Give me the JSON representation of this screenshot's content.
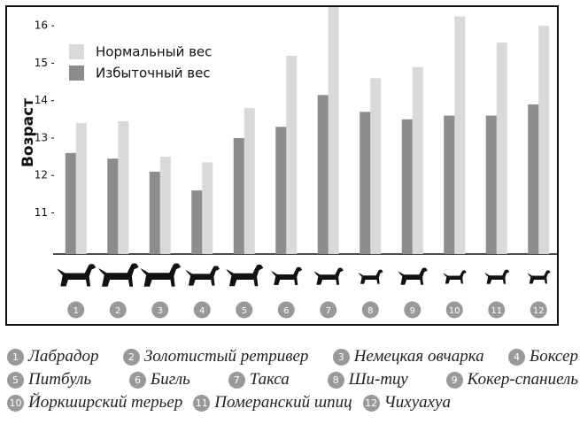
{
  "chart_data": {
    "type": "bar",
    "y_label": "Возраст",
    "categories": [
      "1",
      "2",
      "3",
      "4",
      "5",
      "6",
      "7",
      "8",
      "9",
      "10",
      "11",
      "12"
    ],
    "breeds": [
      "Лабрадор",
      "Золотистый ретривер",
      "Немецкая овчарка",
      "Боксер",
      "Питбуль",
      "Бигль",
      "Такса",
      "Ши-тцу",
      "Кокер-спаниель",
      "Йоркширский терьер",
      "Померанский шпиц",
      "Чихуахуа"
    ],
    "series": [
      {
        "name": "Нормальный вес",
        "color": "#d9d9d9",
        "values": [
          13.4,
          13.45,
          12.5,
          12.35,
          13.8,
          15.2,
          16.5,
          14.6,
          14.9,
          16.25,
          15.55,
          16.0
        ]
      },
      {
        "name": "Избыточный вес",
        "color": "#8c8c8c",
        "values": [
          12.6,
          12.45,
          12.1,
          11.6,
          13.0,
          13.3,
          14.15,
          13.7,
          13.5,
          13.6,
          13.6,
          13.9
        ]
      }
    ],
    "ylim": [
      9.9,
      16.5
    ],
    "yticks": [
      11,
      12,
      13,
      14,
      15,
      16
    ],
    "grid": false
  }
}
